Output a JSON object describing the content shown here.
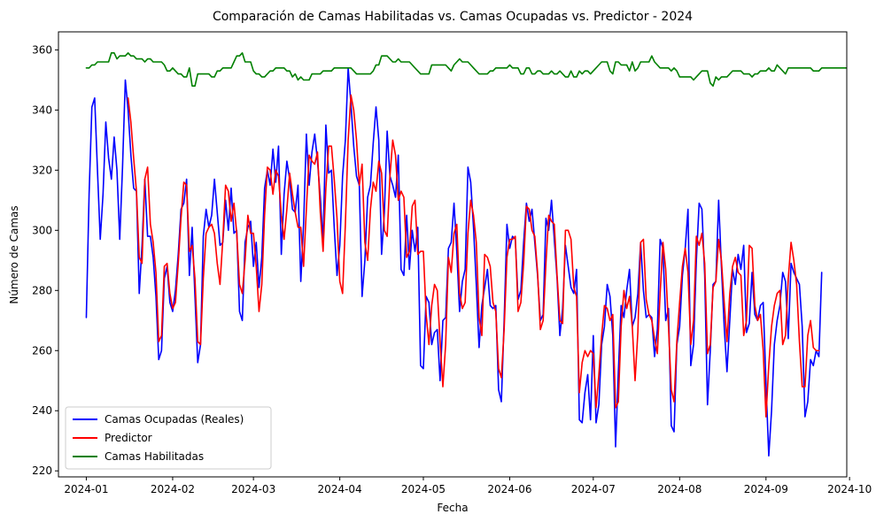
{
  "chart_data": {
    "type": "line",
    "title": "Comparación de Camas Habilitadas vs. Camas Ocupadas vs. Predictor - 2024",
    "xlabel": "Fecha",
    "ylabel": "Número de Camas",
    "x_start": "2024-01-01",
    "x_end": "2024-09-20",
    "xlim": [
      "2023-12-22",
      "2024-09-30"
    ],
    "ylim": [
      218,
      366
    ],
    "x_ticks": [
      "2024-01",
      "2024-02",
      "2024-03",
      "2024-04",
      "2024-05",
      "2024-06",
      "2024-07",
      "2024-08",
      "2024-09",
      "2024-10"
    ],
    "y_ticks": [
      220,
      240,
      260,
      280,
      300,
      320,
      340,
      360
    ],
    "legend_position": "lower-left",
    "series": [
      {
        "name": "Camas Ocupadas (Reales)",
        "color": "#0000ff",
        "values": [
          271,
          312,
          341,
          344,
          320,
          297,
          312,
          336,
          324,
          317,
          331,
          320,
          297,
          321,
          350,
          340,
          325,
          314,
          313,
          279,
          295,
          317,
          298,
          298,
          291,
          278,
          257,
          260,
          284,
          288,
          276,
          273,
          280,
          292,
          307,
          309,
          317,
          285,
          301,
          278,
          256,
          262,
          298,
          307,
          301,
          305,
          317,
          306,
          295,
          296,
          310,
          300,
          314,
          299,
          300,
          273,
          270,
          296,
          301,
          303,
          288,
          296,
          281,
          291,
          314,
          320,
          315,
          327,
          316,
          328,
          292,
          312,
          323,
          317,
          307,
          306,
          315,
          283,
          302,
          332,
          315,
          326,
          332,
          323,
          311,
          296,
          335,
          319,
          320,
          301,
          285,
          295,
          318,
          330,
          354,
          342,
          328,
          318,
          315,
          278,
          290,
          311,
          315,
          329,
          341,
          330,
          292,
          306,
          333,
          318,
          315,
          311,
          325,
          287,
          285,
          305,
          287,
          300,
          293,
          301,
          255,
          254,
          278,
          276,
          262,
          266,
          267,
          250,
          270,
          271,
          294,
          296,
          309,
          293,
          273,
          283,
          287,
          321,
          316,
          301,
          282,
          261,
          275,
          281,
          287,
          275,
          274,
          275,
          247,
          243,
          270,
          302,
          294,
          298,
          297,
          277,
          280,
          296,
          309,
          303,
          307,
          296,
          285,
          270,
          272,
          304,
          300,
          310,
          297,
          284,
          265,
          274,
          295,
          288,
          281,
          279,
          287,
          237,
          236,
          246,
          252,
          237,
          265,
          236,
          242,
          262,
          268,
          282,
          278,
          265,
          228,
          253,
          275,
          271,
          280,
          287,
          268,
          271,
          279,
          296,
          280,
          271,
          272,
          271,
          258,
          267,
          297,
          294,
          270,
          274,
          235,
          233,
          262,
          268,
          285,
          294,
          307,
          255,
          262,
          290,
          309,
          307,
          285,
          242,
          260,
          282,
          283,
          310,
          288,
          268,
          253,
          270,
          287,
          282,
          292,
          287,
          295,
          266,
          269,
          286,
          272,
          270,
          275,
          276,
          249,
          225,
          240,
          262,
          270,
          275,
          286,
          283,
          264,
          289,
          286,
          284,
          282,
          268,
          238,
          243,
          257,
          255,
          260,
          258,
          286
        ]
      },
      {
        "name": "Predictor",
        "color": "#ff0000",
        "values": [
          null,
          null,
          null,
          null,
          null,
          null,
          null,
          null,
          null,
          null,
          null,
          null,
          null,
          null,
          null,
          344,
          336,
          324,
          313,
          291,
          289,
          317,
          321,
          302,
          296,
          286,
          263,
          265,
          288,
          289,
          279,
          274,
          276,
          289,
          304,
          316,
          315,
          293,
          295,
          284,
          263,
          262,
          284,
          299,
          301,
          302,
          299,
          289,
          282,
          297,
          315,
          313,
          303,
          309,
          299,
          282,
          279,
          290,
          305,
          299,
          299,
          288,
          273,
          282,
          305,
          321,
          320,
          312,
          320,
          318,
          305,
          297,
          307,
          319,
          312,
          306,
          301,
          301,
          288,
          307,
          325,
          323,
          322,
          326,
          306,
          293,
          314,
          328,
          328,
          317,
          304,
          283,
          279,
          302,
          330,
          345,
          340,
          330,
          315,
          322,
          296,
          290,
          307,
          316,
          313,
          323,
          319,
          300,
          298,
          318,
          330,
          325,
          310,
          313,
          311,
          291,
          293,
          308,
          310,
          292,
          293,
          293,
          272,
          262,
          275,
          282,
          280,
          263,
          248,
          262,
          291,
          286,
          299,
          302,
          279,
          274,
          276,
          299,
          310,
          305,
          296,
          271,
          265,
          292,
          291,
          288,
          276,
          273,
          254,
          251,
          267,
          291,
          297,
          297,
          298,
          273,
          276,
          289,
          308,
          307,
          300,
          298,
          286,
          267,
          270,
          289,
          305,
          303,
          302,
          285,
          270,
          269,
          300,
          300,
          297,
          281,
          278,
          246,
          256,
          260,
          258,
          260,
          259,
          241,
          252,
          265,
          275,
          274,
          270,
          272,
          241,
          243,
          268,
          280,
          274,
          278,
          268,
          250,
          266,
          296,
          297,
          277,
          272,
          270,
          264,
          259,
          279,
          296,
          287,
          268,
          247,
          243,
          263,
          276,
          288,
          294,
          286,
          262,
          270,
          298,
          295,
          299,
          289,
          259,
          262,
          281,
          283,
          297,
          290,
          276,
          263,
          279,
          288,
          291,
          286,
          285,
          265,
          270,
          295,
          294,
          275,
          270,
          272,
          260,
          238,
          255,
          268,
          275,
          279,
          280,
          262,
          265,
          284,
          296,
          290,
          282,
          263,
          248,
          248,
          265,
          270,
          261,
          260,
          260
        ]
      },
      {
        "name": "Camas Habilitadas",
        "color": "#008000",
        "values": [
          354,
          354,
          355,
          355,
          356,
          356,
          356,
          356,
          356,
          359,
          359,
          357,
          358,
          358,
          358,
          359,
          358,
          358,
          357,
          357,
          357,
          356,
          357,
          357,
          356,
          356,
          356,
          356,
          355,
          353,
          353,
          354,
          353,
          352,
          352,
          351,
          351,
          354,
          348,
          348,
          352,
          352,
          352,
          352,
          352,
          351,
          351,
          353,
          353,
          354,
          354,
          354,
          354,
          356,
          358,
          358,
          359,
          356,
          356,
          356,
          353,
          352,
          352,
          351,
          351,
          352,
          353,
          353,
          354,
          354,
          354,
          354,
          353,
          353,
          351,
          352,
          350,
          351,
          350,
          350,
          350,
          352,
          352,
          352,
          352,
          353,
          353,
          353,
          353,
          354,
          354,
          354,
          354,
          354,
          354,
          354,
          353,
          352,
          352,
          352,
          352,
          352,
          352,
          353,
          355,
          355,
          358,
          358,
          358,
          357,
          356,
          356,
          357,
          356,
          356,
          356,
          356,
          355,
          354,
          353,
          352,
          352,
          352,
          352,
          355,
          355,
          355,
          355,
          355,
          355,
          354,
          353,
          355,
          356,
          357,
          356,
          356,
          356,
          355,
          354,
          353,
          352,
          352,
          352,
          352,
          353,
          353,
          354,
          354,
          354,
          354,
          354,
          355,
          354,
          354,
          354,
          352,
          352,
          354,
          354,
          352,
          352,
          353,
          353,
          352,
          352,
          352,
          353,
          352,
          352,
          353,
          352,
          351,
          351,
          353,
          351,
          351,
          353,
          352,
          353,
          353,
          352,
          353,
          354,
          355,
          356,
          356,
          356,
          353,
          352,
          356,
          356,
          355,
          355,
          355,
          353,
          356,
          353,
          354,
          356,
          356,
          356,
          356,
          358,
          356,
          355,
          354,
          354,
          354,
          354,
          353,
          354,
          353,
          351,
          351,
          351,
          351,
          351,
          350,
          351,
          352,
          353,
          353,
          353,
          349,
          348,
          351,
          350,
          351,
          351,
          351,
          352,
          353,
          353,
          353,
          353,
          352,
          352,
          352,
          351,
          352,
          352,
          353,
          353,
          353,
          354,
          353,
          353,
          355,
          354,
          353,
          352,
          354,
          354,
          354,
          354,
          354,
          354,
          354,
          354,
          354,
          353,
          353,
          353,
          354,
          354,
          354,
          354,
          354,
          354,
          354,
          354,
          354,
          354,
          354,
          354,
          352
        ]
      }
    ]
  }
}
